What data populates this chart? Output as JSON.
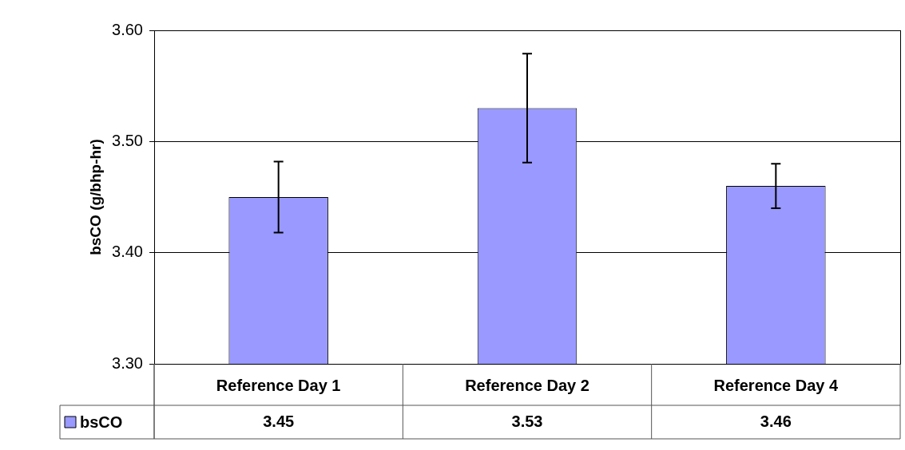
{
  "chart_data": {
    "type": "bar",
    "ylabel": "bsCO (g/bhp-hr)",
    "categories": [
      "Reference Day 1",
      "Reference Day 2",
      "Reference Day 4"
    ],
    "series": [
      {
        "name": "bsCO",
        "color": "#9999ff",
        "values": [
          3.45,
          3.53,
          3.46
        ],
        "errors": [
          0.032,
          0.049,
          0.02
        ]
      }
    ],
    "ylim": [
      3.3,
      3.6
    ],
    "yticks": [
      {
        "value": 3.3,
        "label": "3.30"
      },
      {
        "value": 3.4,
        "label": "3.40"
      },
      {
        "value": 3.5,
        "label": "3.50"
      },
      {
        "value": 3.6,
        "label": "3.60"
      }
    ],
    "grid": "y",
    "legend": "bottom left",
    "data_labels": true
  }
}
